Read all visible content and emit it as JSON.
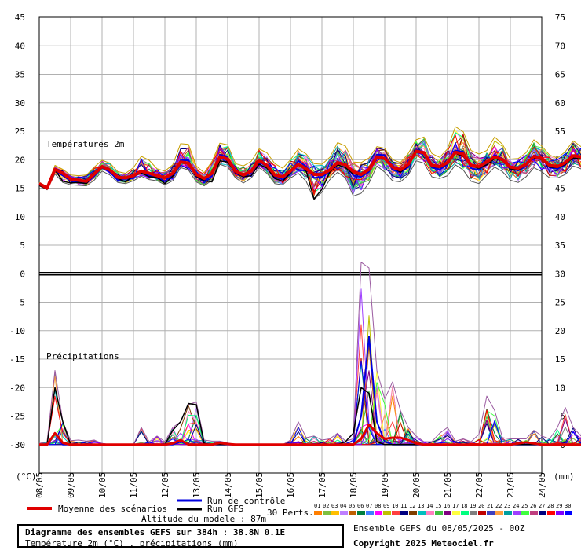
{
  "chart_data": {
    "type": "line",
    "y_unit_label": "(°C)",
    "x_unit_label": "(mm)",
    "left_axis": {
      "min": -35,
      "max": 45,
      "ticks": [
        45,
        40,
        35,
        30,
        25,
        20,
        15,
        10,
        5,
        0,
        -5,
        -10,
        -15,
        -20,
        -25,
        -30
      ]
    },
    "right_axis": {
      "ticks": [
        75,
        70,
        65,
        60,
        55,
        50,
        45,
        40,
        35,
        30,
        25,
        20,
        15,
        10,
        5,
        0
      ]
    },
    "x_dates": [
      "08/05",
      "09/05",
      "10/05",
      "11/05",
      "12/05",
      "13/05",
      "14/05",
      "15/05",
      "16/05",
      "17/05",
      "18/05",
      "19/05",
      "20/05",
      "21/05",
      "22/05",
      "23/05",
      "24/05"
    ],
    "panel_labels": {
      "temperature": "Températures 2m",
      "precipitation": "Précipitations"
    },
    "steps_per_day": 4,
    "temperature_mean": [
      15.8,
      15.0,
      18.3,
      17.6,
      16.6,
      16.4,
      16.2,
      17.5,
      18.8,
      18.2,
      16.9,
      16.8,
      17.2,
      18.0,
      17.6,
      17.2,
      16.8,
      17.6,
      19.6,
      19.4,
      17.4,
      16.7,
      17.6,
      20.5,
      20.1,
      18.0,
      17.3,
      18.0,
      19.9,
      19.0,
      17.3,
      17.0,
      18.0,
      19.2,
      18.4,
      17.4,
      17.4,
      18.2,
      19.5,
      19.1,
      17.9,
      17.4,
      18.3,
      20.5,
      20.2,
      18.7,
      18.2,
      19.2,
      21.5,
      21.2,
      19.0,
      18.8,
      19.5,
      21.3,
      21.0,
      19.0,
      18.8,
      19.6,
      20.5,
      20.0,
      18.7,
      18.5,
      19.2,
      20.6,
      20.2,
      19.0,
      18.8,
      19.5,
      20.7,
      20.5,
      19.0,
      18.9,
      19.8,
      21.0,
      20.4,
      19.1,
      19.1,
      20.0,
      20.9,
      20.6,
      19.2,
      18.9,
      19.8,
      20.7,
      20.3,
      19.4,
      19.0,
      19.9,
      21.1,
      21.0,
      19.3,
      19.3,
      20.2,
      20.9,
      20.6,
      19.6,
      19.8,
      20.3,
      20.6,
      20.6,
      19.5,
      20.3,
      21.0,
      20.3,
      19.2
    ],
    "temperature_min": [
      15.4,
      14.7,
      17.5,
      16.0,
      15.6,
      15.5,
      15.4,
      16.4,
      18.0,
      17.3,
      16.0,
      15.8,
      16.3,
      17.1,
      16.5,
      16.3,
      15.6,
      16.3,
      18.6,
      18.2,
      16.1,
      15.4,
      16.4,
      19.2,
      18.7,
      16.8,
      15.9,
      16.8,
      18.6,
      17.6,
      15.8,
      15.6,
      16.8,
      17.6,
      16.2,
      13.0,
      14.3,
      16.5,
      17.8,
      16.8,
      13.6,
      14.1,
      15.9,
      18.9,
      17.8,
      16.3,
      16.1,
      17.3,
      19.8,
      19.4,
      17.0,
      16.7,
      17.2,
      19.1,
      18.2,
      16.2,
      15.8,
      17.3,
      18.7,
      17.9,
      16.4,
      16.0,
      17.0,
      18.6,
      17.9,
      16.8,
      16.8,
      17.4,
      18.9,
      18.4,
      16.4,
      16.4,
      17.9,
      19.0,
      18.2,
      17.2,
      17.0,
      18.0,
      18.6,
      18.4,
      16.8,
      16.8,
      18.0,
      18.9,
      18.4,
      17.5,
      17.1,
      18.1,
      19.0,
      18.7,
      16.7,
      17.3,
      18.1,
      18.9,
      18.4,
      17.8,
      17.9,
      18.7,
      18.6,
      18.2,
      17.8,
      18.3,
      19.3,
      18.1,
      17.8
    ],
    "temperature_max": [
      16.0,
      15.3,
      19.0,
      18.3,
      17.3,
      17.2,
      17.3,
      18.7,
      19.9,
      19.4,
      17.9,
      17.6,
      18.6,
      20.6,
      19.9,
      18.4,
      18.0,
      19.1,
      22.8,
      22.7,
      18.9,
      17.7,
      19.7,
      22.9,
      22.6,
      19.3,
      18.9,
      19.7,
      21.9,
      21.2,
      19.3,
      18.5,
      20.0,
      21.9,
      21.0,
      19.3,
      19.2,
      20.4,
      23.0,
      22.4,
      19.6,
      19.5,
      20.3,
      22.3,
      22.0,
      20.0,
      19.5,
      21.1,
      23.5,
      24.0,
      21.1,
      20.4,
      21.9,
      25.8,
      24.9,
      21.6,
      21.0,
      21.6,
      24.0,
      22.7,
      20.1,
      20.2,
      21.2,
      23.5,
      22.4,
      20.8,
      20.3,
      21.4,
      23.3,
      22.3,
      20.4,
      20.2,
      21.3,
      25.0,
      24.5,
      21.0,
      20.6,
      22.0,
      23.9,
      23.0,
      20.8,
      20.4,
      21.7,
      23.6,
      22.7,
      21.2,
      20.9,
      22.2,
      24.1,
      23.6,
      21.1,
      21.4,
      22.5,
      24.5,
      24.9,
      21.8,
      21.6,
      22.7,
      24.6,
      24.8,
      21.5,
      22.0,
      22.7,
      21.9,
      20.8
    ],
    "temperature_control": [
      15.6,
      14.9,
      18.1,
      17.2,
      16.3,
      16.0,
      15.9,
      17.1,
      18.6,
      17.8,
      16.4,
      16.2,
      16.9,
      17.8,
      17.2,
      16.8,
      16.2,
      17.4,
      19.9,
      19.9,
      17.0,
      16.3,
      17.2,
      20.9,
      20.4,
      17.6,
      17.0,
      17.7,
      19.6,
      18.8,
      17.1,
      16.5,
      17.5,
      19.8,
      18.8,
      16.8,
      17.0,
      17.9,
      19.5,
      19.3,
      17.2,
      17.0,
      17.9,
      20.9,
      20.8,
      18.2,
      17.8,
      18.7,
      21.8,
      21.3,
      18.6,
      18.3,
      19.1,
      21.6,
      21.4,
      18.5,
      18.2,
      19.4,
      20.8,
      20.2,
      18.4,
      18.1,
      18.9,
      20.8,
      20.3,
      18.6,
      18.4,
      19.1,
      20.6,
      20.4,
      18.3,
      18.5,
      19.6,
      21.2,
      20.6,
      18.8,
      18.8,
      19.9,
      21.2,
      20.8,
      18.9,
      18.6,
      19.7,
      21.0,
      20.6,
      19.1,
      18.6,
      19.9,
      21.4,
      21.3,
      19.0,
      19.0,
      19.9,
      21.1,
      20.8,
      19.2,
      19.4,
      20.1,
      20.8,
      20.9,
      19.3,
      20.0,
      21.1,
      20.5,
      19.0
    ],
    "temperature_gfs": [
      15.5,
      14.8,
      18.2,
      16.2,
      15.9,
      16.0,
      15.8,
      17.4,
      18.9,
      18.0,
      16.7,
      16.1,
      17.2,
      17.6,
      17.0,
      16.9,
      15.8,
      17.1,
      19.4,
      19.3,
      17.1,
      16.3,
      16.1,
      19.8,
      19.6,
      17.7,
      17.0,
      17.2,
      19.2,
      18.5,
      16.7,
      16.2,
      17.7,
      19.4,
      18.0,
      13.1,
      14.8,
      17.8,
      19.1,
      18.6,
      17.5,
      17.3,
      18.1,
      20.4,
      20.0,
      18.7,
      17.8,
      19.0,
      21.4,
      21.1,
      18.8,
      18.6,
      19.3,
      21.1,
      20.6,
      18.9,
      18.5,
      19.1,
      20.2,
      19.8,
      18.4,
      18.2,
      19.1,
      20.3,
      20.0,
      18.7,
      18.6,
      19.2,
      20.3,
      20.1,
      18.7,
      18.5,
      19.5,
      20.6,
      20.1,
      18.8,
      18.6,
      19.7,
      20.5,
      20.2,
      18.7,
      18.6,
      19.5,
      20.4,
      20.0,
      19.1,
      16.4,
      19.6,
      20.8,
      20.7,
      19.1,
      19.1,
      19.9,
      20.6,
      20.3,
      19.3,
      19.5,
      20.0,
      20.3,
      20.3,
      19.2,
      20.1,
      20.7,
      20.1,
      18.9
    ],
    "precipitation_mean": [
      0,
      0,
      2.0,
      0.3,
      0,
      0,
      0,
      0,
      0,
      0,
      0,
      0,
      0,
      0,
      0,
      0,
      0,
      0.2,
      0.8,
      0,
      0,
      0,
      0,
      0.3,
      0.1,
      0,
      0,
      0,
      0,
      0,
      0,
      0,
      0,
      0,
      0,
      0,
      0,
      0,
      0,
      0,
      0,
      1.0,
      3.5,
      2.0,
      1.0,
      1.2,
      1.2,
      0.8,
      0.2,
      0,
      0,
      0,
      0,
      0,
      0,
      0,
      0,
      0,
      0,
      0,
      0,
      0.2,
      0.4,
      0.2,
      0,
      0,
      0,
      0,
      0,
      0,
      0,
      0,
      0.3,
      0.4,
      0.2,
      0,
      0,
      0,
      0,
      0,
      0,
      0,
      0,
      0,
      0.2,
      0.3,
      0.5,
      0.2,
      0,
      0.4,
      0.2,
      0.2,
      0,
      0,
      0,
      0,
      0,
      0,
      0,
      0,
      0,
      0,
      0,
      0,
      0
    ],
    "precipitation_max": [
      0.2,
      0.5,
      13.0,
      4.0,
      0.7,
      0.8,
      0.6,
      0.8,
      0.2,
      0,
      0,
      0,
      0,
      3.0,
      0.5,
      1.5,
      0.5,
      3.0,
      4.0,
      7.0,
      7.5,
      0.8,
      0.6,
      0.6,
      0.3,
      0,
      0,
      0,
      0,
      0,
      0,
      0,
      0.8,
      4.0,
      1.2,
      1.5,
      0.8,
      1.0,
      2.0,
      0.6,
      1.0,
      32.0,
      31.0,
      13.0,
      8.0,
      11.0,
      6.0,
      3.0,
      1.5,
      0.5,
      0.5,
      2.0,
      3.0,
      0.6,
      1.0,
      0.5,
      1.8,
      8.5,
      6.0,
      1.2,
      1.0,
      1.0,
      1.0,
      2.5,
      1.5,
      1.0,
      3.0,
      6.5,
      3.0,
      1.5,
      12.0,
      18.5,
      3.5,
      1.0,
      0.5,
      1.0,
      1.0,
      0.8,
      1.5,
      0.6,
      1.0,
      1.5,
      3.0,
      2.0,
      2.0,
      1.5,
      2.5,
      6.0,
      1.5,
      3.5,
      3.0,
      3.0,
      2.0,
      1.5,
      5.5,
      6.0,
      1.5,
      1.5,
      1.5,
      2.0,
      1.0,
      1.0,
      2.0,
      5.0,
      1.0
    ],
    "precipitation_control": [
      0,
      0,
      2.0,
      0,
      0,
      0,
      0,
      0,
      0,
      0,
      0,
      0,
      0,
      0,
      0,
      0,
      0,
      0,
      0.5,
      0,
      0,
      0,
      0,
      0,
      0,
      0,
      0,
      0,
      0,
      0,
      0,
      0,
      0,
      0,
      0,
      0,
      0,
      0,
      0,
      0,
      0,
      5.0,
      19.0,
      4.0,
      0.5,
      0,
      0,
      0,
      0,
      0,
      0,
      0,
      0,
      0,
      0,
      0,
      0,
      0,
      0,
      0,
      0,
      0,
      0,
      0,
      0,
      0,
      0,
      0,
      0,
      0,
      10.0,
      3.0,
      0,
      0,
      0,
      0,
      0,
      0,
      0,
      0,
      0,
      0,
      0,
      0,
      0,
      0,
      0,
      0,
      1.0,
      0,
      0,
      0,
      0,
      0,
      0,
      0,
      5.5,
      6.0,
      1.0,
      0,
      0,
      0,
      0,
      1.0,
      0
    ],
    "precipitation_gfs": [
      0,
      0,
      10.0,
      4.0,
      0,
      0,
      0,
      0,
      0,
      0,
      0,
      0,
      0,
      0,
      0,
      0,
      0,
      2.5,
      4.0,
      7.2,
      7.0,
      0.2,
      0,
      0,
      0,
      0,
      0,
      0,
      0,
      0,
      0,
      0,
      0,
      0,
      0,
      0,
      0,
      0,
      0,
      0.5,
      2.0,
      10.0,
      9.0,
      0.5,
      0,
      0,
      0,
      0,
      0,
      0,
      0,
      0,
      0,
      0,
      0,
      0,
      0,
      0,
      0,
      0,
      0,
      0,
      0,
      0,
      0,
      0,
      0,
      0,
      0,
      0,
      0,
      0,
      0,
      0,
      0,
      0,
      0,
      0,
      0,
      0,
      0,
      0,
      0,
      0,
      0,
      0,
      0,
      0,
      0,
      0,
      0,
      0,
      0,
      0,
      0,
      0,
      0,
      0,
      0,
      0,
      0,
      0,
      0,
      0,
      0
    ]
  },
  "legend": {
    "mean_label": "Moyenne des scénarios",
    "control_label": "Run de contrôle",
    "gfs_label": "Run GFS",
    "model_altitude": "Altitude du modele : 87m",
    "perts_label": "30 Perts.",
    "pert_numbers": [
      "01",
      "02",
      "03",
      "04",
      "05",
      "06",
      "07",
      "08",
      "09",
      "10",
      "11",
      "12",
      "13",
      "14",
      "15",
      "16",
      "17",
      "18",
      "19",
      "20",
      "21",
      "22",
      "23",
      "24",
      "25",
      "26",
      "27",
      "28",
      "29",
      "30"
    ],
    "pert_colors": [
      "#ff7f00",
      "#7fbf3f",
      "#ffbf00",
      "#bf7fff",
      "#bf5f00",
      "#007f3f",
      "#3f7fff",
      "#ff00ff",
      "#bfbf00",
      "#ff3f3f",
      "#000080",
      "#7f3f00",
      "#00bfbf",
      "#ff7fbf",
      "#3fbf3f",
      "#7f007f",
      "#ffff3f",
      "#00ff7f",
      "#7f7f7f",
      "#bf0000",
      "#3f3fbf",
      "#ff9f3f",
      "#009f9f",
      "#9f3fff",
      "#3fff3f",
      "#bf3f7f",
      "#00007f",
      "#ff0000",
      "#7f00ff",
      "#0000ff"
    ],
    "mean_color": "#e00000",
    "control_color": "#0000e0",
    "gfs_color": "#000000"
  },
  "footer": {
    "title": "Diagramme des ensembles GEFS sur 384h : 38.8N 0.1E",
    "subtitle": "Température 2m (°C) , précipitations (mm)",
    "run_info": "Ensemble GEFS du 08/05/2025 - 00Z",
    "copyright": "Copyright 2025 Meteociel.fr"
  }
}
